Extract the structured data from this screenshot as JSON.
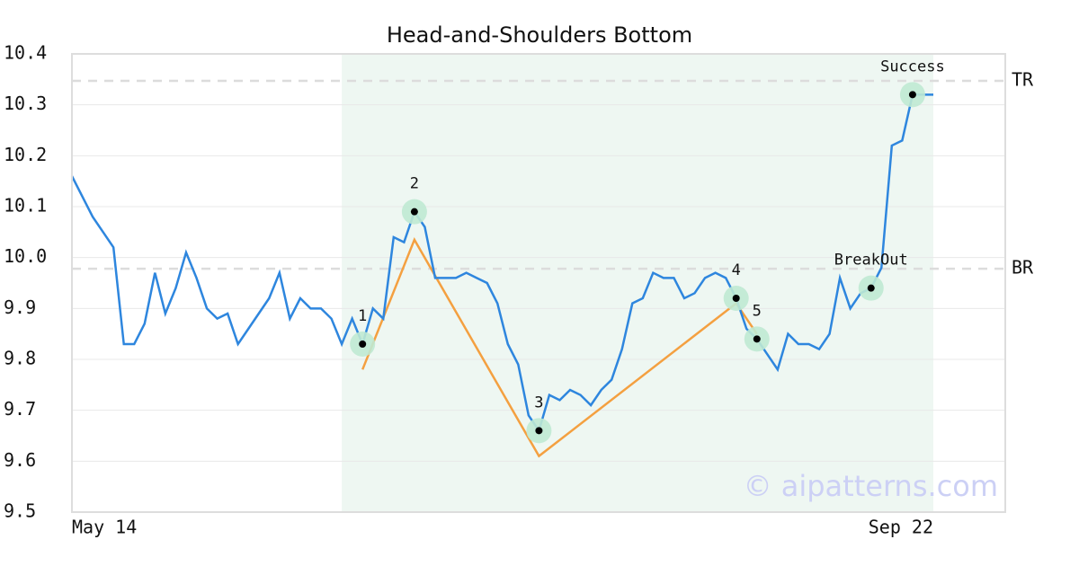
{
  "chart_data": {
    "type": "line",
    "title": "Head-and-Shoulders Bottom",
    "categories": [
      "May 14",
      null,
      null,
      null,
      null,
      null,
      null,
      null,
      null,
      null,
      null,
      null,
      null,
      null,
      null,
      null,
      null,
      null,
      null,
      null,
      null,
      null,
      null,
      null,
      null,
      null,
      null,
      null,
      null,
      null,
      null,
      null,
      null,
      null,
      null,
      null,
      null,
      null,
      null,
      null,
      null,
      null,
      null,
      null,
      null,
      null,
      null,
      null,
      null,
      null,
      null,
      null,
      null,
      null,
      null,
      null,
      null,
      null,
      null,
      null,
      null,
      null,
      null,
      null,
      null,
      null,
      null,
      null,
      null,
      null,
      null,
      null,
      null,
      null,
      null,
      null,
      null,
      null,
      null,
      null,
      null,
      null,
      null,
      "Sep 22"
    ],
    "series": [
      {
        "color": "#2e86de",
        "values": [
          10.16,
          10.12,
          10.08,
          10.05,
          10.02,
          9.83,
          9.83,
          9.87,
          9.97,
          9.89,
          9.94,
          10.01,
          9.96,
          9.9,
          9.88,
          9.89,
          9.83,
          9.86,
          9.89,
          9.92,
          9.97,
          9.88,
          9.92,
          9.9,
          9.9,
          9.88,
          9.83,
          9.88,
          9.83,
          9.9,
          9.88,
          10.04,
          10.03,
          10.09,
          10.06,
          9.96,
          9.96,
          9.96,
          9.97,
          9.96,
          9.95,
          9.91,
          9.83,
          9.79,
          9.69,
          9.66,
          9.73,
          9.72,
          9.74,
          9.73,
          9.71,
          9.74,
          9.76,
          9.82,
          9.91,
          9.92,
          9.97,
          9.96,
          9.96,
          9.92,
          9.93,
          9.96,
          9.97,
          9.96,
          9.92,
          9.86,
          9.84,
          9.81,
          9.78,
          9.85,
          9.83,
          9.83,
          9.82,
          9.85,
          9.96,
          9.9,
          9.93,
          9.94,
          9.98,
          10.22,
          10.23,
          10.32,
          10.32,
          10.32
        ]
      }
    ],
    "pattern_line": {
      "color": "#f4a040",
      "x": [
        28,
        33,
        45,
        64,
        66
      ],
      "values": [
        9.78,
        10.035,
        9.61,
        9.91,
        9.85
      ]
    },
    "markers": [
      {
        "label": "1",
        "index": 28
      },
      {
        "label": "2",
        "index": 33
      },
      {
        "label": "3",
        "index": 45
      },
      {
        "label": "4",
        "index": 64
      },
      {
        "label": "5",
        "index": 66
      },
      {
        "label": "BreakOut",
        "index": 77
      },
      {
        "label": "Success",
        "index": 81
      }
    ],
    "levels": [
      {
        "label": "TR",
        "value": 10.347
      },
      {
        "label": "BR",
        "value": 9.978
      }
    ],
    "highlight_range": [
      26,
      83
    ],
    "ylim": [
      9.5,
      10.4
    ],
    "yticks": [
      9.5,
      9.6,
      9.7,
      9.8,
      9.9,
      {
        "value": 10,
        "label": "10.0"
      },
      10.1,
      10.2,
      10.3,
      10.4
    ],
    "grid": true,
    "watermark": "© aipatterns.com"
  }
}
